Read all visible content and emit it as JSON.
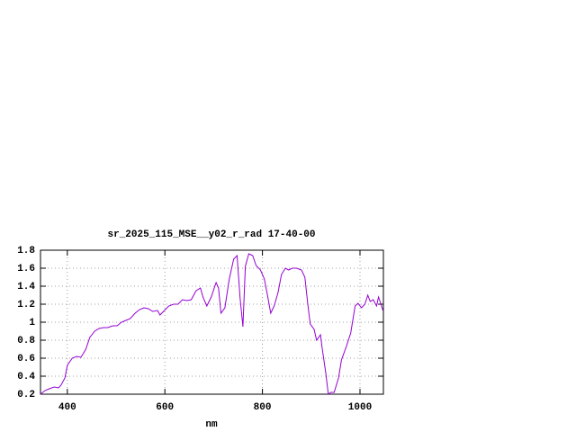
{
  "chart_data": {
    "type": "line",
    "title": "sr_2025_115_MSE__y02_r_rad 17-40-00",
    "x_label": "nm",
    "color": "#9400d3",
    "grid": true,
    "xlim": [
      345,
      1048
    ],
    "xticks": [
      400,
      600,
      800,
      1000
    ],
    "ylim": [
      0.2,
      1.8
    ],
    "yticks": [
      0.2,
      0.4,
      0.6,
      0.8,
      1,
      1.2,
      1.4,
      1.6,
      1.8
    ],
    "x": [
      345,
      354,
      363,
      373,
      382,
      387,
      395,
      400,
      410,
      419,
      428,
      438,
      446,
      456,
      465,
      474,
      483,
      493,
      502,
      511,
      520,
      529,
      539,
      548,
      557,
      566,
      575,
      585,
      590,
      599,
      608,
      618,
      627,
      636,
      645,
      654,
      664,
      673,
      678,
      686,
      695,
      705,
      710,
      715,
      723,
      732,
      741,
      748,
      754,
      760,
      765,
      772,
      780,
      787,
      796,
      804,
      811,
      817,
      824,
      832,
      839,
      847,
      854,
      861,
      870,
      880,
      887,
      893,
      898,
      906,
      911,
      919,
      922,
      930,
      935,
      940,
      947,
      956,
      962,
      972,
      981,
      990,
      996,
      1003,
      1010,
      1016,
      1021,
      1027,
      1034,
      1038,
      1043,
      1047
    ],
    "values": [
      0.2,
      0.24,
      0.26,
      0.28,
      0.27,
      0.3,
      0.38,
      0.52,
      0.6,
      0.62,
      0.61,
      0.7,
      0.83,
      0.9,
      0.93,
      0.94,
      0.94,
      0.96,
      0.96,
      1.0,
      1.02,
      1.04,
      1.1,
      1.14,
      1.16,
      1.15,
      1.12,
      1.13,
      1.08,
      1.13,
      1.18,
      1.2,
      1.2,
      1.25,
      1.24,
      1.25,
      1.35,
      1.38,
      1.28,
      1.18,
      1.28,
      1.44,
      1.38,
      1.1,
      1.16,
      1.48,
      1.7,
      1.74,
      1.28,
      0.95,
      1.62,
      1.76,
      1.74,
      1.63,
      1.58,
      1.48,
      1.28,
      1.1,
      1.18,
      1.33,
      1.53,
      1.6,
      1.58,
      1.6,
      1.6,
      1.58,
      1.5,
      1.2,
      0.98,
      0.92,
      0.8,
      0.86,
      0.73,
      0.43,
      0.2,
      0.22,
      0.22,
      0.38,
      0.58,
      0.73,
      0.88,
      1.18,
      1.21,
      1.16,
      1.2,
      1.3,
      1.23,
      1.25,
      1.18,
      1.28,
      1.2,
      1.13
    ]
  }
}
